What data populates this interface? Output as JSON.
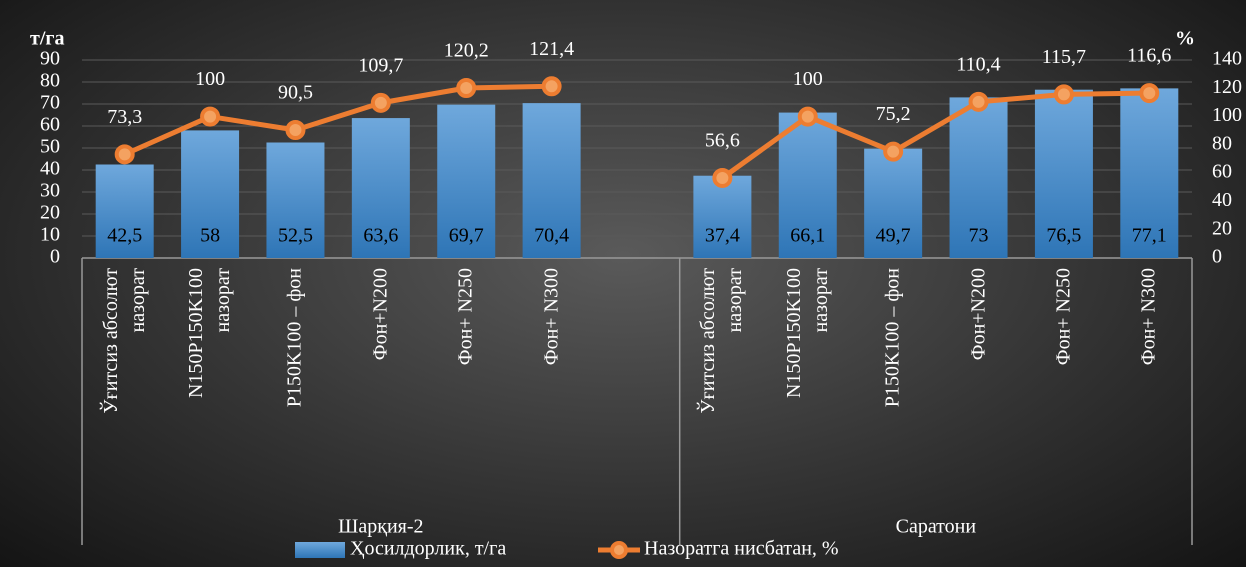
{
  "chart_data": {
    "type": "bar-line",
    "y_label": "т/га",
    "y2_label": "%",
    "groups": [
      {
        "name": "Шарқия-2",
        "categories": [
          "Ўғитсиз абсолют\nназорат",
          "N150P150K100\nназорат",
          "P150K100 – фон",
          "Фон+N200",
          "Фон+ N250",
          "Фон+ N300",
          null
        ]
      },
      {
        "name": "Саратони",
        "categories": [
          "Ўғитсиз абсолют\nназорат",
          "N150P150K100\nназорат",
          "P150K100 – фон",
          "Фон+N200",
          "Фон+ N250",
          "Фон+ N300"
        ]
      }
    ],
    "series": [
      {
        "name": "Ҳосилдорлик, т/га",
        "type": "bar",
        "color": "#5b9bd5",
        "values": [
          42.5,
          58,
          52.5,
          63.6,
          69.7,
          70.4,
          null,
          37.4,
          66.1,
          49.7,
          73,
          76.5,
          77.1
        ],
        "value_labels": [
          "42,5",
          "58",
          "52,5",
          "63,6",
          "69,7",
          "70,4",
          null,
          "37,4",
          "66,1",
          "49,7",
          "73",
          "76,5",
          "77,1"
        ]
      },
      {
        "name": "Назоратга нисбатан, %",
        "type": "line",
        "axis": "y2",
        "color": "#ed7d31",
        "values": [
          73.3,
          100,
          90.5,
          109.7,
          120.2,
          121.4,
          null,
          56.6,
          100,
          75.2,
          110.4,
          115.7,
          116.6
        ],
        "value_labels": [
          "73,3",
          "100",
          "90,5",
          "109,7",
          "120,2",
          "121,4",
          null,
          "56,6",
          "100",
          "75,2",
          "110,4",
          "115,7",
          "116,6"
        ]
      }
    ],
    "ylim": [
      0,
      90
    ],
    "yticks": [
      0,
      10,
      20,
      30,
      40,
      50,
      60,
      70,
      80,
      90
    ],
    "y2lim": [
      0,
      140
    ],
    "y2ticks": [
      0,
      20,
      40,
      60,
      80,
      100,
      120,
      140
    ],
    "grid": true
  }
}
